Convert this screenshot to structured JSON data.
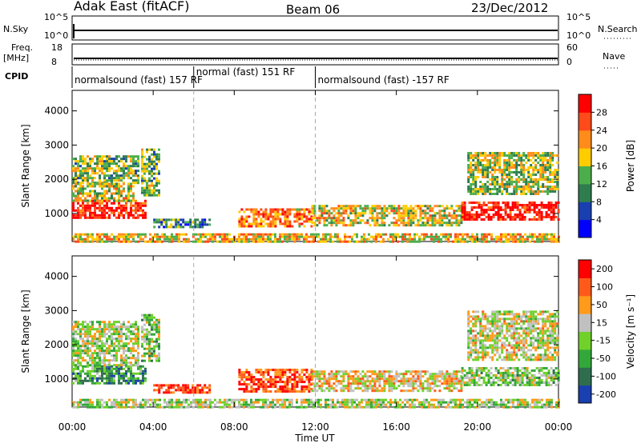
{
  "header": {
    "station": "Adak East (fitACF)",
    "beam": "Beam 06",
    "date": "23/Dec/2012"
  },
  "top_panels": {
    "nsky_label": "N.Sky",
    "nsky_ticks": [
      "10^5",
      "10^0"
    ],
    "nsearch_label": "N.Search",
    "nsearch_ticks": [
      "10^5",
      "10^0"
    ],
    "freq_label": "Freq.",
    "freq_unit": "[MHz]",
    "freq_ticks": [
      "18",
      "8"
    ],
    "nave_label": "Nave",
    "nave_ticks": [
      "60",
      "0"
    ],
    "cpid_label": "CPID",
    "cpid_segments": [
      {
        "label": "normalsound (fast) 157 RF",
        "start_hour": 0,
        "end_hour": 6
      },
      {
        "label": "normal (fast) 151 RF",
        "start_hour": 6,
        "end_hour": 12
      },
      {
        "label": "normalsound (fast) -157 RF",
        "start_hour": 12,
        "end_hour": 24
      }
    ]
  },
  "chart_data": [
    {
      "type": "heatmap",
      "ylabel": "Slant Range [km]",
      "xlabel": "Time UT",
      "xlim": [
        0,
        24
      ],
      "ylim": [
        180,
        4600
      ],
      "x_ticks": [
        "00:00",
        "04:00",
        "08:00",
        "12:00",
        "16:00",
        "20:00",
        "00:00"
      ],
      "y_ticks": [
        1000,
        2000,
        3000,
        4000
      ],
      "colorbar_label": "Power [dB]",
      "colorbar_ticks": [
        "4",
        "8",
        "12",
        "16",
        "20",
        "24",
        "28"
      ],
      "colorbar_colors": [
        "#0000ff",
        "#1a3fb0",
        "#2e7d4f",
        "#4cae4a",
        "#ffcc00",
        "#ff8c1a",
        "#ff4a1a",
        "#ff0000"
      ],
      "regions": [
        {
          "name": "early-band",
          "t0": 0.0,
          "t1": 3.6,
          "r0": 850,
          "r1": 1400,
          "level": 0.92
        },
        {
          "name": "early-high",
          "t0": 0.0,
          "t1": 3.3,
          "r0": 1900,
          "r1": 2700,
          "level": 0.45
        },
        {
          "name": "early-low",
          "t0": 0.0,
          "t1": 3.0,
          "r0": 1400,
          "r1": 1900,
          "level": 0.55
        },
        {
          "name": "spike",
          "t0": 3.4,
          "t1": 4.3,
          "r0": 1500,
          "r1": 2900,
          "level": 0.42
        },
        {
          "name": "morning-low",
          "t0": 4.0,
          "t1": 6.8,
          "r0": 600,
          "r1": 850,
          "level": 0.32
        },
        {
          "name": "midday",
          "t0": 8.2,
          "t1": 11.8,
          "r0": 650,
          "r1": 1150,
          "level": 0.72
        },
        {
          "name": "afternoon",
          "t0": 11.8,
          "t1": 19.2,
          "r0": 650,
          "r1": 1250,
          "level": 0.55
        },
        {
          "name": "late-band",
          "t0": 19.2,
          "t1": 24.0,
          "r0": 800,
          "r1": 1350,
          "level": 0.95
        },
        {
          "name": "late-high",
          "t0": 19.5,
          "t1": 24.0,
          "r0": 1550,
          "r1": 2800,
          "level": 0.5
        },
        {
          "name": "ground-clutter",
          "t0": 0.0,
          "t1": 24.0,
          "r0": 180,
          "r1": 420,
          "level": 0.6
        }
      ]
    },
    {
      "type": "heatmap",
      "ylabel": "Slant Range [km]",
      "xlabel": "Time UT",
      "xlim": [
        0,
        24
      ],
      "ylim": [
        180,
        4600
      ],
      "x_ticks": [
        "00:00",
        "04:00",
        "08:00",
        "12:00",
        "16:00",
        "20:00",
        "00:00"
      ],
      "y_ticks": [
        1000,
        2000,
        3000,
        4000
      ],
      "colorbar_label": "Velocity [m s⁻¹]",
      "colorbar_ticks": [
        "200",
        "100",
        "50",
        "15",
        "-15",
        "-50",
        "-100",
        "-200"
      ],
      "colorbar_colors": [
        "#1a3fb0",
        "#2e6e4f",
        "#33a83a",
        "#6fd12a",
        "#c0c0c0",
        "#ff9a1a",
        "#ff5a1a",
        "#ff0000"
      ],
      "regions": [
        {
          "name": "early-band",
          "t0": 0.0,
          "t1": 3.6,
          "r0": 850,
          "r1": 1400,
          "level": 0.3
        },
        {
          "name": "early-high",
          "t0": 0.0,
          "t1": 3.3,
          "r0": 1400,
          "r1": 2700,
          "level": 0.5
        },
        {
          "name": "spike",
          "t0": 3.4,
          "t1": 4.3,
          "r0": 1500,
          "r1": 2900,
          "level": 0.45
        },
        {
          "name": "morning-low",
          "t0": 4.0,
          "t1": 6.8,
          "r0": 600,
          "r1": 850,
          "level": 0.85
        },
        {
          "name": "midday",
          "t0": 8.2,
          "t1": 11.8,
          "r0": 650,
          "r1": 1300,
          "level": 0.85
        },
        {
          "name": "afternoon",
          "t0": 11.8,
          "t1": 19.2,
          "r0": 650,
          "r1": 1250,
          "level": 0.6
        },
        {
          "name": "late-band",
          "t0": 19.2,
          "t1": 24.0,
          "r0": 800,
          "r1": 1350,
          "level": 0.45
        },
        {
          "name": "late-high",
          "t0": 19.5,
          "t1": 24.0,
          "r0": 1550,
          "r1": 3000,
          "level": 0.55
        },
        {
          "name": "ground-clutter",
          "t0": 0.0,
          "t1": 24.0,
          "r0": 180,
          "r1": 420,
          "level": 0.5
        }
      ]
    }
  ]
}
